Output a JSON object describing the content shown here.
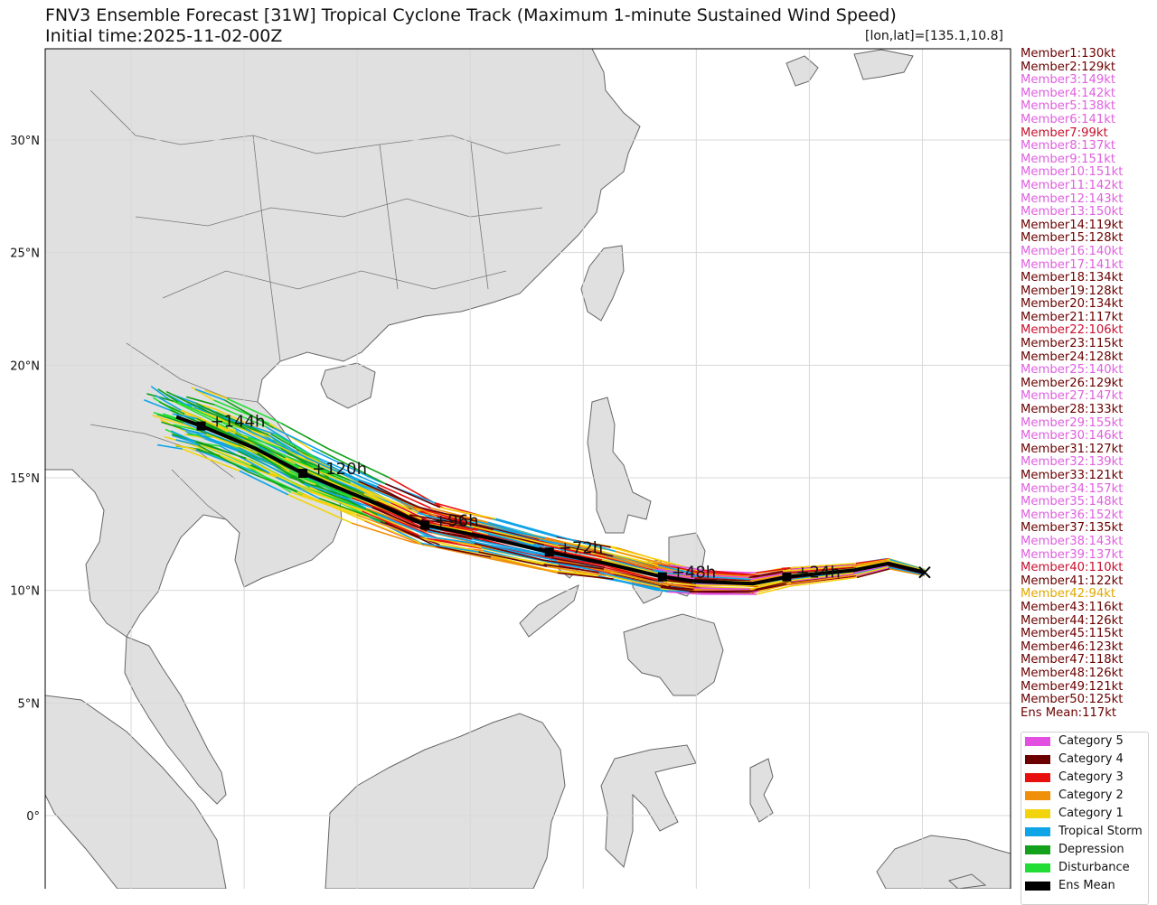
{
  "header": {
    "title": "FNV3 Ensemble Forecast [31W] Tropical Cyclone Track (Maximum 1-minute Sustained Wind Speed)",
    "subtitle": "Initial time:2025-11-02-00Z",
    "lonlat": "[lon,lat]=[135.1,10.8]"
  },
  "map": {
    "lat_labels": [
      "30°N",
      "25°N",
      "20°N",
      "15°N",
      "10°N",
      "5°N",
      "0°"
    ],
    "lat_values": [
      30,
      25,
      20,
      15,
      10,
      5,
      0
    ],
    "lon_grid": [
      100,
      105,
      110,
      115,
      120,
      125,
      130,
      135
    ],
    "initial_position": {
      "lon": 135.1,
      "lat": 10.8
    },
    "land_color": "#e0e0e0",
    "coast_color": "#666666"
  },
  "ens_mean_track": {
    "points": [
      {
        "lon": 135.1,
        "lat": 10.8
      },
      {
        "lon": 133.5,
        "lat": 11.2
      },
      {
        "lon": 132.0,
        "lat": 10.9
      },
      {
        "lon": 129.0,
        "lat": 10.6,
        "label": "+24h"
      },
      {
        "lon": 127.5,
        "lat": 10.3
      },
      {
        "lon": 125.0,
        "lat": 10.4
      },
      {
        "lon": 123.5,
        "lat": 10.6,
        "label": "+48h"
      },
      {
        "lon": 121.0,
        "lat": 11.2
      },
      {
        "lon": 118.5,
        "lat": 11.7,
        "label": "+72h"
      },
      {
        "lon": 115.5,
        "lat": 12.4
      },
      {
        "lon": 113.0,
        "lat": 12.9,
        "label": "+96h"
      },
      {
        "lon": 110.5,
        "lat": 14.0
      },
      {
        "lon": 107.6,
        "lat": 15.2,
        "label": "+120h"
      },
      {
        "lon": 105.5,
        "lat": 16.3
      },
      {
        "lon": 103.1,
        "lat": 17.3,
        "label": "+144h"
      },
      {
        "lon": 102.0,
        "lat": 17.7
      }
    ]
  },
  "members": [
    {
      "label": "Member1:130kt",
      "color": "#6b0000"
    },
    {
      "label": "Member2:129kt",
      "color": "#6b0000"
    },
    {
      "label": "Member3:149kt",
      "color": "#e060e0"
    },
    {
      "label": "Member4:142kt",
      "color": "#e060e0"
    },
    {
      "label": "Member5:138kt",
      "color": "#e060e0"
    },
    {
      "label": "Member6:141kt",
      "color": "#e060e0"
    },
    {
      "label": "Member7:99kt",
      "color": "#c8102e"
    },
    {
      "label": "Member8:137kt",
      "color": "#e060e0"
    },
    {
      "label": "Member9:151kt",
      "color": "#e060e0"
    },
    {
      "label": "Member10:151kt",
      "color": "#e060e0"
    },
    {
      "label": "Member11:142kt",
      "color": "#e060e0"
    },
    {
      "label": "Member12:143kt",
      "color": "#e060e0"
    },
    {
      "label": "Member13:150kt",
      "color": "#e060e0"
    },
    {
      "label": "Member14:119kt",
      "color": "#6b0000"
    },
    {
      "label": "Member15:128kt",
      "color": "#6b0000"
    },
    {
      "label": "Member16:140kt",
      "color": "#e060e0"
    },
    {
      "label": "Member17:141kt",
      "color": "#e060e0"
    },
    {
      "label": "Member18:134kt",
      "color": "#6b0000"
    },
    {
      "label": "Member19:128kt",
      "color": "#6b0000"
    },
    {
      "label": "Member20:134kt",
      "color": "#6b0000"
    },
    {
      "label": "Member21:117kt",
      "color": "#6b0000"
    },
    {
      "label": "Member22:106kt",
      "color": "#c8102e"
    },
    {
      "label": "Member23:115kt",
      "color": "#6b0000"
    },
    {
      "label": "Member24:128kt",
      "color": "#6b0000"
    },
    {
      "label": "Member25:140kt",
      "color": "#e060e0"
    },
    {
      "label": "Member26:129kt",
      "color": "#6b0000"
    },
    {
      "label": "Member27:147kt",
      "color": "#e060e0"
    },
    {
      "label": "Member28:133kt",
      "color": "#6b0000"
    },
    {
      "label": "Member29:155kt",
      "color": "#e060e0"
    },
    {
      "label": "Member30:146kt",
      "color": "#e060e0"
    },
    {
      "label": "Member31:127kt",
      "color": "#6b0000"
    },
    {
      "label": "Member32:139kt",
      "color": "#e060e0"
    },
    {
      "label": "Member33:121kt",
      "color": "#6b0000"
    },
    {
      "label": "Member34:157kt",
      "color": "#e060e0"
    },
    {
      "label": "Member35:148kt",
      "color": "#e060e0"
    },
    {
      "label": "Member36:152kt",
      "color": "#e060e0"
    },
    {
      "label": "Member37:135kt",
      "color": "#6b0000"
    },
    {
      "label": "Member38:143kt",
      "color": "#e060e0"
    },
    {
      "label": "Member39:137kt",
      "color": "#e060e0"
    },
    {
      "label": "Member40:110kt",
      "color": "#c8102e"
    },
    {
      "label": "Member41:122kt",
      "color": "#6b0000"
    },
    {
      "label": "Member42:94kt",
      "color": "#e0a800"
    },
    {
      "label": "Member43:116kt",
      "color": "#6b0000"
    },
    {
      "label": "Member44:126kt",
      "color": "#6b0000"
    },
    {
      "label": "Member45:115kt",
      "color": "#6b0000"
    },
    {
      "label": "Member46:123kt",
      "color": "#6b0000"
    },
    {
      "label": "Member47:118kt",
      "color": "#6b0000"
    },
    {
      "label": "Member48:126kt",
      "color": "#6b0000"
    },
    {
      "label": "Member49:121kt",
      "color": "#6b0000"
    },
    {
      "label": "Member50:125kt",
      "color": "#6b0000"
    }
  ],
  "ens_mean_label": {
    "label": "Ens Mean:117kt",
    "color": "#6b0000"
  },
  "legend": [
    {
      "label": "Category 5",
      "color": "#e34fe0"
    },
    {
      "label": "Category 4",
      "color": "#6b0000"
    },
    {
      "label": "Category 3",
      "color": "#e8100e"
    },
    {
      "label": "Category 2",
      "color": "#f0900a"
    },
    {
      "label": "Category 1",
      "color": "#f2d40e"
    },
    {
      "label": "Tropical Storm",
      "color": "#0ea4e8"
    },
    {
      "label": "Depression",
      "color": "#13a01a"
    },
    {
      "label": "Disturbance",
      "color": "#22dd33"
    },
    {
      "label": "Ens Mean",
      "color": "#000000"
    }
  ]
}
